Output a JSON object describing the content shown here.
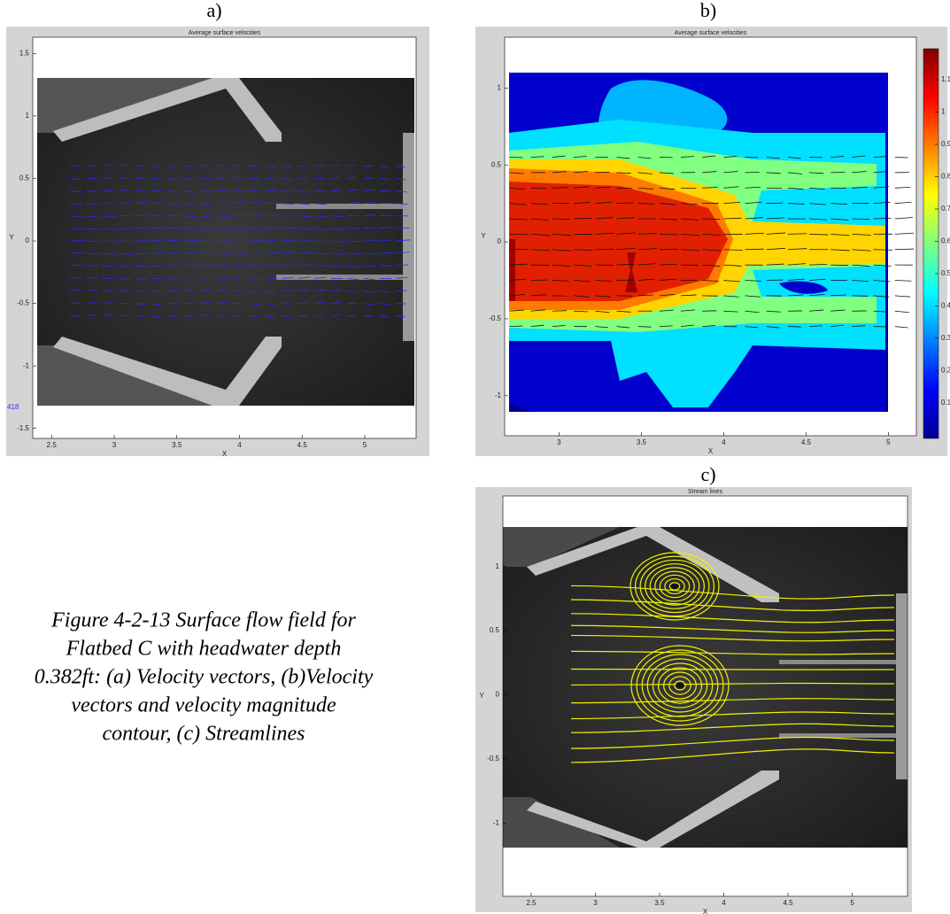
{
  "figures": [
    {
      "label": "a)",
      "title": "Average surface velocities",
      "x_label": "X",
      "y_label": "Y",
      "xlim": [
        2.35,
        5.41
      ],
      "ylim": [
        -1.58,
        1.63
      ],
      "xticks": [
        2.5,
        3,
        3.5,
        4,
        4.5,
        5
      ],
      "yticks": [
        1.5,
        1,
        0.5,
        0,
        -0.5,
        -1,
        -1.5
      ],
      "annotation": "418"
    },
    {
      "label": "b)",
      "title": "Average surface velocities",
      "x_label": "X",
      "y_label": "Y",
      "xlim": [
        2.67,
        5.17
      ],
      "ylim": [
        -1.26,
        1.33
      ],
      "xticks": [
        3,
        3.5,
        4,
        4.5,
        5
      ],
      "yticks": [
        1,
        0.5,
        0,
        -0.5,
        -1
      ],
      "colorbar": {
        "clim": [
          -0.01,
          1.196
        ],
        "ticks": [
          0.1,
          0.2,
          0.3,
          0.4,
          0.5,
          0.6,
          0.7,
          0.8,
          0.9,
          1,
          1.1
        ]
      }
    },
    {
      "label": "c)",
      "title": "Stream lines",
      "x_label": "X",
      "y_label": "Y",
      "xlim": [
        2.28,
        5.43
      ],
      "ylim": [
        -1.57,
        1.55
      ],
      "xticks": [
        2.5,
        3,
        3.5,
        4,
        4.5,
        5
      ],
      "yticks": [
        1,
        0.5,
        0,
        -0.5,
        -1
      ]
    }
  ],
  "caption": [
    "Figure 4-2-13 Surface flow field for",
    "Flatbed C with headwater depth",
    "0.382ft: (a) Velocity vectors, (b)Velocity",
    "vectors and velocity magnitude",
    "contour, (c) Streamlines"
  ]
}
